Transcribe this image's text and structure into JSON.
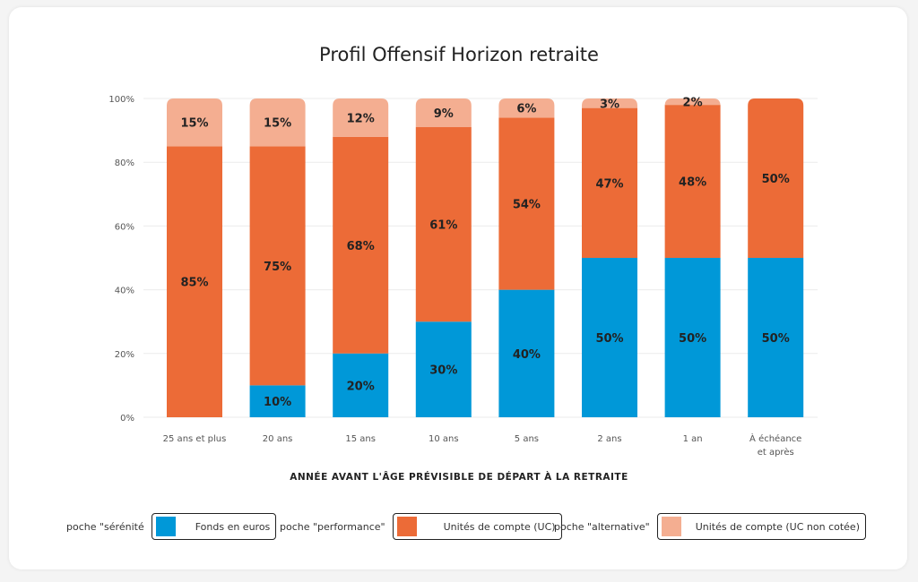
{
  "chart_data": {
    "type": "bar",
    "stacked": true,
    "title": "Profil Offensif Horizon retraite",
    "xlabel": "ANNÉE AVANT L'ÂGE PRÉVISIBLE DE DÉPART À LA RETRAITE",
    "ylabel": "",
    "ylim": [
      0,
      100
    ],
    "yticks": [
      "0%",
      "20%",
      "40%",
      "60%",
      "80%",
      "100%"
    ],
    "grid": true,
    "legend_placement": "bottom",
    "categories": [
      "25 ans et plus",
      "20 ans",
      "15 ans",
      "10 ans",
      "5 ans",
      "2 ans",
      "1 an",
      "À échéance|et après"
    ],
    "series": [
      {
        "name": "Fonds en euros",
        "pocket": "poche \"sérénité",
        "color": "#0098d8",
        "values": [
          0,
          10,
          20,
          30,
          40,
          50,
          50,
          50
        ]
      },
      {
        "name": "Unités de compte (UC)",
        "pocket": "poche \"performance\"",
        "color": "#ec6b37",
        "values": [
          85,
          75,
          68,
          61,
          54,
          47,
          48,
          50
        ]
      },
      {
        "name": "Unités de compte  (UC non  cotée)",
        "pocket": "poche \"alternative\"",
        "color": "#f4ae91",
        "values": [
          15,
          15,
          12,
          9,
          6,
          3,
          2,
          0
        ]
      }
    ]
  }
}
